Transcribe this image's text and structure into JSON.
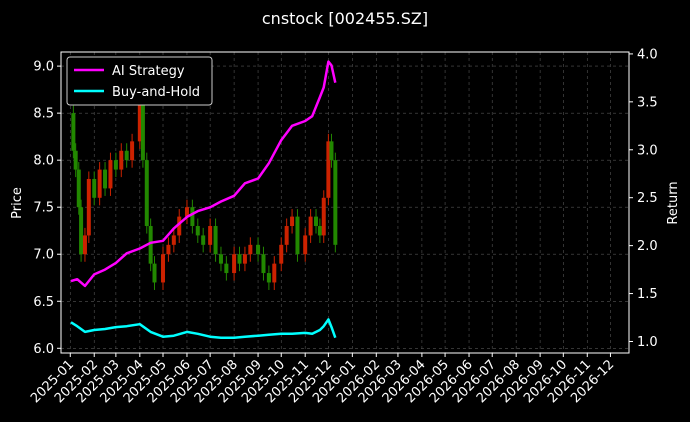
{
  "chart_data": {
    "type": "line",
    "title": "cnstock [002455.SZ]",
    "ylabel": "Price",
    "y2label": "Return",
    "ylim": [
      5.95,
      9.15
    ],
    "y2lim": [
      0.88,
      4.02
    ],
    "yticks": [
      "6.0",
      "6.5",
      "7.0",
      "7.5",
      "8.0",
      "8.5",
      "9.0"
    ],
    "yticks_values": [
      6.0,
      6.5,
      7.0,
      7.5,
      8.0,
      8.5,
      9.0
    ],
    "y2ticks": [
      "1.0",
      "1.5",
      "2.0",
      "2.5",
      "3.0",
      "3.5",
      "4.0"
    ],
    "y2ticks_values": [
      1.0,
      1.5,
      2.0,
      2.5,
      3.0,
      3.5,
      4.0
    ],
    "xticks": [
      "2025-01",
      "2025-02",
      "2025-03",
      "2025-04",
      "2025-05",
      "2025-06",
      "2025-07",
      "2025-08",
      "2025-09",
      "2025-10",
      "2025-11",
      "2025-12",
      "2026-01",
      "2026-02",
      "2026-03",
      "2026-04",
      "2026-05",
      "2026-06",
      "2026-07",
      "2026-08",
      "2026-09",
      "2026-10",
      "2026-11",
      "2026-12"
    ],
    "grid": true,
    "legend_position": "top-left",
    "colors": {
      "background": "#000000",
      "ai_strategy": "#ff00ff",
      "buy_and_hold": "#00ffff",
      "candle_up": "#cc2200",
      "candle_down": "#228800"
    },
    "series": [
      {
        "name": "AI Strategy",
        "axis": "right",
        "x": [
          "2025-01-02",
          "2025-01-10",
          "2025-01-20",
          "2025-02-01",
          "2025-02-15",
          "2025-03-01",
          "2025-03-15",
          "2025-04-01",
          "2025-04-15",
          "2025-05-01",
          "2025-05-15",
          "2025-06-01",
          "2025-06-15",
          "2025-07-01",
          "2025-07-15",
          "2025-08-01",
          "2025-08-15",
          "2025-09-01",
          "2025-09-15",
          "2025-10-01",
          "2025-10-15",
          "2025-11-01",
          "2025-11-10",
          "2025-11-20",
          "2025-11-25",
          "2025-12-01",
          "2025-12-05",
          "2025-12-10"
        ],
        "values": [
          1.63,
          1.65,
          1.58,
          1.7,
          1.75,
          1.82,
          1.92,
          1.97,
          2.03,
          2.05,
          2.18,
          2.3,
          2.36,
          2.4,
          2.46,
          2.52,
          2.65,
          2.7,
          2.86,
          3.1,
          3.25,
          3.3,
          3.35,
          3.55,
          3.65,
          3.92,
          3.88,
          3.7
        ]
      },
      {
        "name": "Buy-and-Hold",
        "axis": "right",
        "x": [
          "2025-01-02",
          "2025-01-10",
          "2025-01-20",
          "2025-02-01",
          "2025-02-15",
          "2025-03-01",
          "2025-03-15",
          "2025-04-01",
          "2025-04-15",
          "2025-05-01",
          "2025-05-15",
          "2025-06-01",
          "2025-06-15",
          "2025-07-01",
          "2025-07-15",
          "2025-08-01",
          "2025-08-15",
          "2025-09-01",
          "2025-09-15",
          "2025-10-01",
          "2025-10-15",
          "2025-11-01",
          "2025-11-10",
          "2025-11-20",
          "2025-11-25",
          "2025-12-01",
          "2025-12-05",
          "2025-12-10"
        ],
        "values": [
          1.2,
          1.16,
          1.1,
          1.12,
          1.13,
          1.15,
          1.16,
          1.18,
          1.1,
          1.05,
          1.06,
          1.1,
          1.08,
          1.05,
          1.04,
          1.04,
          1.05,
          1.06,
          1.07,
          1.08,
          1.08,
          1.09,
          1.08,
          1.12,
          1.16,
          1.23,
          1.15,
          1.04
        ]
      },
      {
        "name": "Price",
        "axis": "left",
        "kind": "candlestick",
        "x": [
          "2025-01-02",
          "2025-01-05",
          "2025-01-08",
          "2025-01-12",
          "2025-01-15",
          "2025-01-20",
          "2025-01-25",
          "2025-02-01",
          "2025-02-08",
          "2025-02-15",
          "2025-02-22",
          "2025-03-01",
          "2025-03-08",
          "2025-03-15",
          "2025-03-22",
          "2025-04-01",
          "2025-04-05",
          "2025-04-10",
          "2025-04-15",
          "2025-04-20",
          "2025-05-01",
          "2025-05-08",
          "2025-05-15",
          "2025-05-22",
          "2025-06-01",
          "2025-06-08",
          "2025-06-15",
          "2025-06-22",
          "2025-07-01",
          "2025-07-08",
          "2025-07-15",
          "2025-07-22",
          "2025-08-01",
          "2025-08-08",
          "2025-08-15",
          "2025-08-22",
          "2025-09-01",
          "2025-09-08",
          "2025-09-15",
          "2025-09-22",
          "2025-10-01",
          "2025-10-08",
          "2025-10-15",
          "2025-10-22",
          "2025-11-01",
          "2025-11-08",
          "2025-11-15",
          "2025-11-20",
          "2025-11-25",
          "2025-12-01",
          "2025-12-05",
          "2025-12-10"
        ],
        "values": [
          8.5,
          8.1,
          7.9,
          7.5,
          7.0,
          7.2,
          7.8,
          7.6,
          7.9,
          7.7,
          8.0,
          7.9,
          8.1,
          8.0,
          8.2,
          8.6,
          8.0,
          7.3,
          6.9,
          6.7,
          7.0,
          7.1,
          7.2,
          7.4,
          7.5,
          7.3,
          7.2,
          7.1,
          7.3,
          7.0,
          6.9,
          6.8,
          7.0,
          6.9,
          7.0,
          7.1,
          7.0,
          6.8,
          6.7,
          6.9,
          7.1,
          7.3,
          7.4,
          7.0,
          7.2,
          7.4,
          7.3,
          7.2,
          7.6,
          8.2,
          8.0,
          7.1
        ]
      }
    ]
  }
}
